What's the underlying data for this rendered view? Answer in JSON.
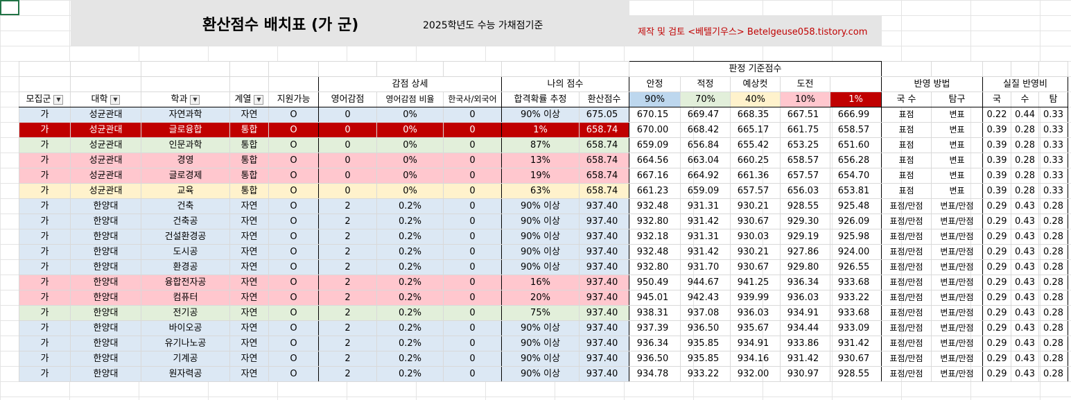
{
  "sheet": {
    "title": "환산점수 배치표 (가 군)",
    "subtitle": "2025학년도 수능 가채점기준",
    "credit": "제작 및 검토 <베텔기우스> Betelgeuse058.tistory.com"
  },
  "groups": {
    "deduct": "감점 상세",
    "mine": "나의 점수",
    "judge": "판정 기준점수",
    "method": "반영 방법",
    "ratio": "실질 반영비"
  },
  "headers": {
    "gun": "모집군",
    "univ": "대학",
    "dept": "학과",
    "track": "계열",
    "avail": "지원가능",
    "eng": "영어감점",
    "engratio": "영어감점 비율",
    "hist": "한국사/외국어",
    "prob": "합격확률 추정",
    "score": "환산점수",
    "safe": "안정",
    "fit": "적정",
    "cut": "예상컷",
    "chal": "도전",
    "km": "국 수",
    "tam": "탐구",
    "rk": "국",
    "rs": "수",
    "rt": "탐"
  },
  "levels": {
    "safe": "90%",
    "fit": "70%",
    "cut": "40%",
    "chal": "10%",
    "last": "1%"
  },
  "rows": [
    {
      "style": "blue",
      "gun": "가",
      "univ": "성균관대",
      "dept": "자연과학",
      "track": "자연",
      "avail": "O",
      "eng": "0",
      "engratio": "0%",
      "hist": "0",
      "prob": "90% 이상",
      "score": "675.05",
      "safe": "670.15",
      "fit": "669.47",
      "cut": "668.35",
      "chal": "667.51",
      "last": "666.99",
      "km": "표점",
      "tam": "변표",
      "rk": "0.22",
      "rs": "0.44",
      "rt": "0.33"
    },
    {
      "style": "red",
      "gun": "가",
      "univ": "성균관대",
      "dept": "글로융합",
      "track": "통합",
      "avail": "O",
      "eng": "0",
      "engratio": "0%",
      "hist": "0",
      "prob": "1%",
      "score": "658.74",
      "safe": "670.00",
      "fit": "668.42",
      "cut": "665.17",
      "chal": "661.75",
      "last": "658.57",
      "km": "표점",
      "tam": "변표",
      "rk": "0.39",
      "rs": "0.28",
      "rt": "0.33"
    },
    {
      "style": "green",
      "gun": "가",
      "univ": "성균관대",
      "dept": "인문과학",
      "track": "통합",
      "avail": "O",
      "eng": "0",
      "engratio": "0%",
      "hist": "0",
      "prob": "87%",
      "score": "658.74",
      "safe": "659.09",
      "fit": "656.84",
      "cut": "655.42",
      "chal": "653.25",
      "last": "651.60",
      "km": "표점",
      "tam": "변표",
      "rk": "0.39",
      "rs": "0.28",
      "rt": "0.33"
    },
    {
      "style": "pink",
      "gun": "가",
      "univ": "성균관대",
      "dept": "경영",
      "track": "통합",
      "avail": "O",
      "eng": "0",
      "engratio": "0%",
      "hist": "0",
      "prob": "13%",
      "score": "658.74",
      "safe": "664.56",
      "fit": "663.04",
      "cut": "660.25",
      "chal": "658.57",
      "last": "656.28",
      "km": "표점",
      "tam": "변표",
      "rk": "0.39",
      "rs": "0.28",
      "rt": "0.33"
    },
    {
      "style": "pink",
      "gun": "가",
      "univ": "성균관대",
      "dept": "글로경제",
      "track": "통합",
      "avail": "O",
      "eng": "0",
      "engratio": "0%",
      "hist": "0",
      "prob": "19%",
      "score": "658.74",
      "safe": "667.16",
      "fit": "664.92",
      "cut": "661.36",
      "chal": "657.57",
      "last": "654.70",
      "km": "표점",
      "tam": "변표",
      "rk": "0.39",
      "rs": "0.28",
      "rt": "0.33"
    },
    {
      "style": "yellow",
      "gun": "가",
      "univ": "성균관대",
      "dept": "교육",
      "track": "통합",
      "avail": "O",
      "eng": "0",
      "engratio": "0%",
      "hist": "0",
      "prob": "63%",
      "score": "658.74",
      "safe": "661.23",
      "fit": "659.09",
      "cut": "657.57",
      "chal": "656.03",
      "last": "653.81",
      "km": "표점",
      "tam": "변표",
      "rk": "0.39",
      "rs": "0.28",
      "rt": "0.33"
    },
    {
      "style": "blue",
      "gun": "가",
      "univ": "한양대",
      "dept": "건축",
      "track": "자연",
      "avail": "O",
      "eng": "2",
      "engratio": "0.2%",
      "hist": "0",
      "prob": "90% 이상",
      "score": "937.40",
      "safe": "932.48",
      "fit": "931.31",
      "cut": "930.21",
      "chal": "928.55",
      "last": "925.48",
      "km": "표점/만점",
      "tam": "변표/만점",
      "rk": "0.29",
      "rs": "0.43",
      "rt": "0.28"
    },
    {
      "style": "blue",
      "gun": "가",
      "univ": "한양대",
      "dept": "건축공",
      "track": "자연",
      "avail": "O",
      "eng": "2",
      "engratio": "0.2%",
      "hist": "0",
      "prob": "90% 이상",
      "score": "937.40",
      "safe": "932.80",
      "fit": "931.42",
      "cut": "930.67",
      "chal": "929.30",
      "last": "926.09",
      "km": "표점/만점",
      "tam": "변표/만점",
      "rk": "0.29",
      "rs": "0.43",
      "rt": "0.28"
    },
    {
      "style": "blue",
      "gun": "가",
      "univ": "한양대",
      "dept": "건설환경공",
      "track": "자연",
      "avail": "O",
      "eng": "2",
      "engratio": "0.2%",
      "hist": "0",
      "prob": "90% 이상",
      "score": "937.40",
      "safe": "932.18",
      "fit": "931.31",
      "cut": "930.03",
      "chal": "929.19",
      "last": "925.98",
      "km": "표점/만점",
      "tam": "변표/만점",
      "rk": "0.29",
      "rs": "0.43",
      "rt": "0.28"
    },
    {
      "style": "blue",
      "gun": "가",
      "univ": "한양대",
      "dept": "도시공",
      "track": "자연",
      "avail": "O",
      "eng": "2",
      "engratio": "0.2%",
      "hist": "0",
      "prob": "90% 이상",
      "score": "937.40",
      "safe": "932.48",
      "fit": "931.42",
      "cut": "930.21",
      "chal": "927.86",
      "last": "924.00",
      "km": "표점/만점",
      "tam": "변표/만점",
      "rk": "0.29",
      "rs": "0.43",
      "rt": "0.28"
    },
    {
      "style": "blue",
      "gun": "가",
      "univ": "한양대",
      "dept": "환경공",
      "track": "자연",
      "avail": "O",
      "eng": "2",
      "engratio": "0.2%",
      "hist": "0",
      "prob": "90% 이상",
      "score": "937.40",
      "safe": "932.80",
      "fit": "931.70",
      "cut": "930.67",
      "chal": "929.80",
      "last": "926.55",
      "km": "표점/만점",
      "tam": "변표/만점",
      "rk": "0.29",
      "rs": "0.43",
      "rt": "0.28"
    },
    {
      "style": "pink",
      "gun": "가",
      "univ": "한양대",
      "dept": "융합전자공",
      "track": "자연",
      "avail": "O",
      "eng": "2",
      "engratio": "0.2%",
      "hist": "0",
      "prob": "16%",
      "score": "937.40",
      "safe": "950.49",
      "fit": "944.67",
      "cut": "941.25",
      "chal": "936.34",
      "last": "933.68",
      "km": "표점/만점",
      "tam": "변표/만점",
      "rk": "0.29",
      "rs": "0.43",
      "rt": "0.28"
    },
    {
      "style": "pink",
      "gun": "가",
      "univ": "한양대",
      "dept": "컴퓨터",
      "track": "자연",
      "avail": "O",
      "eng": "2",
      "engratio": "0.2%",
      "hist": "0",
      "prob": "20%",
      "score": "937.40",
      "safe": "945.01",
      "fit": "942.43",
      "cut": "939.99",
      "chal": "936.03",
      "last": "933.22",
      "km": "표점/만점",
      "tam": "변표/만점",
      "rk": "0.29",
      "rs": "0.43",
      "rt": "0.28"
    },
    {
      "style": "green",
      "gun": "가",
      "univ": "한양대",
      "dept": "전기공",
      "track": "자연",
      "avail": "O",
      "eng": "2",
      "engratio": "0.2%",
      "hist": "0",
      "prob": "75%",
      "score": "937.40",
      "safe": "938.31",
      "fit": "937.08",
      "cut": "936.03",
      "chal": "934.91",
      "last": "933.68",
      "km": "표점/만점",
      "tam": "변표/만점",
      "rk": "0.29",
      "rs": "0.43",
      "rt": "0.28"
    },
    {
      "style": "blue",
      "gun": "가",
      "univ": "한양대",
      "dept": "바이오공",
      "track": "자연",
      "avail": "O",
      "eng": "2",
      "engratio": "0.2%",
      "hist": "0",
      "prob": "90% 이상",
      "score": "937.40",
      "safe": "937.39",
      "fit": "936.50",
      "cut": "935.67",
      "chal": "934.44",
      "last": "933.09",
      "km": "표점/만점",
      "tam": "변표/만점",
      "rk": "0.29",
      "rs": "0.43",
      "rt": "0.28"
    },
    {
      "style": "blue",
      "gun": "가",
      "univ": "한양대",
      "dept": "유기나노공",
      "track": "자연",
      "avail": "O",
      "eng": "2",
      "engratio": "0.2%",
      "hist": "0",
      "prob": "90% 이상",
      "score": "937.40",
      "safe": "936.34",
      "fit": "935.85",
      "cut": "934.91",
      "chal": "933.86",
      "last": "931.42",
      "km": "표점/만점",
      "tam": "변표/만점",
      "rk": "0.29",
      "rs": "0.43",
      "rt": "0.28"
    },
    {
      "style": "blue",
      "gun": "가",
      "univ": "한양대",
      "dept": "기계공",
      "track": "자연",
      "avail": "O",
      "eng": "2",
      "engratio": "0.2%",
      "hist": "0",
      "prob": "90% 이상",
      "score": "937.40",
      "safe": "936.50",
      "fit": "935.85",
      "cut": "934.16",
      "chal": "931.42",
      "last": "930.67",
      "km": "표점/만점",
      "tam": "변표/만점",
      "rk": "0.29",
      "rs": "0.43",
      "rt": "0.28"
    },
    {
      "style": "blue",
      "gun": "가",
      "univ": "한양대",
      "dept": "원자력공",
      "track": "자연",
      "avail": "O",
      "eng": "2",
      "engratio": "0.2%",
      "hist": "0",
      "prob": "90% 이상",
      "score": "937.40",
      "safe": "934.78",
      "fit": "933.22",
      "cut": "932.00",
      "chal": "930.97",
      "last": "928.55",
      "km": "표점/만점",
      "tam": "변표/만점",
      "rk": "0.29",
      "rs": "0.43",
      "rt": "0.28"
    }
  ]
}
